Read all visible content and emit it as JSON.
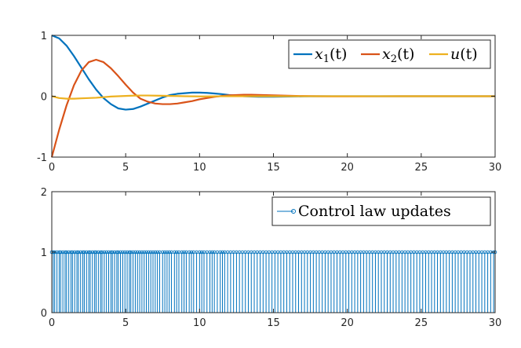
{
  "chart_data": [
    {
      "type": "line",
      "title": "",
      "xlabel": "",
      "ylabel": "",
      "xlim": [
        0,
        30
      ],
      "ylim": [
        -1,
        1
      ],
      "xticks": [
        "0",
        "5",
        "10",
        "15",
        "20",
        "25",
        "30"
      ],
      "yticks": [
        "-1",
        "0",
        "1"
      ],
      "legend_position": "top-right",
      "series": [
        {
          "name": "x1(t)",
          "legend_base": "x",
          "legend_sub": "1",
          "legend_arg": "(t)",
          "color": "#0072BD",
          "x": [
            0,
            0.5,
            1,
            1.5,
            2,
            2.5,
            3,
            3.5,
            4,
            4.5,
            5,
            5.5,
            6,
            6.5,
            7,
            7.5,
            8,
            8.5,
            9,
            9.5,
            10,
            10.5,
            11,
            11.5,
            12,
            12.5,
            13,
            13.5,
            14,
            15,
            16,
            17,
            18,
            19,
            20,
            22,
            24,
            26,
            28,
            30
          ],
          "y": [
            1,
            0.95,
            0.83,
            0.66,
            0.47,
            0.28,
            0.11,
            -0.03,
            -0.13,
            -0.2,
            -0.22,
            -0.21,
            -0.17,
            -0.12,
            -0.07,
            -0.02,
            0.02,
            0.04,
            0.05,
            0.06,
            0.06,
            0.055,
            0.045,
            0.035,
            0.02,
            0.01,
            0.0,
            -0.005,
            -0.008,
            -0.008,
            -0.005,
            -0.002,
            0,
            0.001,
            0.001,
            0,
            0,
            0,
            0,
            0
          ]
        },
        {
          "name": "x2(t)",
          "legend_base": "x",
          "legend_sub": "2",
          "legend_arg": "(t)",
          "color": "#D95319",
          "x": [
            0,
            0.5,
            1,
            1.5,
            2,
            2.5,
            3,
            3.5,
            4,
            4.5,
            5,
            5.5,
            6,
            6.5,
            7,
            7.5,
            8,
            8.5,
            9,
            9.5,
            10,
            10.5,
            11,
            11.5,
            12,
            12.5,
            13,
            13.5,
            14,
            15,
            16,
            17,
            18,
            19,
            20,
            22,
            24,
            26,
            28,
            30
          ],
          "y": [
            -1,
            -0.55,
            -0.15,
            0.18,
            0.42,
            0.56,
            0.6,
            0.56,
            0.46,
            0.33,
            0.19,
            0.06,
            -0.04,
            -0.09,
            -0.12,
            -0.13,
            -0.13,
            -0.12,
            -0.1,
            -0.08,
            -0.05,
            -0.03,
            -0.01,
            0.005,
            0.015,
            0.02,
            0.025,
            0.025,
            0.022,
            0.015,
            0.008,
            0.003,
            0,
            -0.002,
            -0.002,
            -0.001,
            0,
            0,
            0,
            0
          ]
        },
        {
          "name": "u(t)",
          "legend_base": "u",
          "legend_sub": "",
          "legend_arg": "(t)",
          "color": "#EDB120",
          "x": [
            0,
            0.5,
            1,
            1.5,
            2,
            2.5,
            3,
            3.5,
            4,
            4.5,
            5,
            5.5,
            6,
            6.5,
            7,
            7.5,
            8,
            8.5,
            9,
            9.5,
            10,
            10.5,
            11,
            11.5,
            12,
            12.5,
            13,
            13.5,
            14,
            15,
            16,
            17,
            18,
            19,
            20,
            22,
            24,
            26,
            28,
            30
          ],
          "y": [
            0,
            -0.03,
            -0.04,
            -0.04,
            -0.035,
            -0.03,
            -0.025,
            -0.015,
            -0.005,
            0.0,
            0.005,
            0.01,
            0.012,
            0.012,
            0.01,
            0.008,
            0.005,
            0.003,
            0.0,
            -0.002,
            -0.003,
            -0.003,
            -0.002,
            -0.001,
            0,
            0,
            0,
            0,
            0,
            0,
            0,
            0,
            0,
            0,
            0,
            0,
            0,
            0,
            0,
            0
          ]
        }
      ]
    },
    {
      "type": "stem",
      "title": "",
      "xlabel": "",
      "ylabel": "",
      "xlim": [
        0,
        30
      ],
      "ylim": [
        0,
        2
      ],
      "xticks": [
        "0",
        "5",
        "10",
        "15",
        "20",
        "25",
        "30"
      ],
      "yticks": [
        "0",
        "1",
        "2"
      ],
      "legend_position": "top-right",
      "series": [
        {
          "name": "Control law updates",
          "color": "#0072BD",
          "value": 1,
          "x": [
            0.0,
            0.1,
            0.2,
            0.35,
            0.5,
            0.6,
            0.75,
            0.9,
            1.0,
            1.15,
            1.3,
            1.4,
            1.55,
            1.7,
            1.8,
            1.95,
            2.1,
            2.2,
            2.35,
            2.5,
            2.6,
            2.75,
            2.9,
            3.0,
            3.15,
            3.3,
            3.4,
            3.55,
            3.7,
            3.85,
            4.0,
            4.1,
            4.25,
            4.4,
            4.5,
            4.65,
            4.8,
            4.95,
            5.1,
            5.25,
            5.35,
            5.5,
            5.65,
            5.8,
            5.95,
            6.1,
            6.25,
            6.4,
            6.55,
            6.7,
            6.85,
            7.0,
            7.15,
            7.3,
            7.5,
            7.65,
            7.8,
            7.95,
            8.1,
            8.3,
            8.45,
            8.6,
            8.8,
            8.95,
            9.1,
            9.3,
            9.45,
            9.6,
            9.8,
            10.0,
            10.15,
            10.3,
            10.5,
            10.7,
            10.85,
            11.0,
            11.2,
            11.4,
            11.55,
            11.7,
            11.9,
            12.1,
            12.3,
            12.5,
            12.7,
            12.9,
            13.1,
            13.3,
            13.5,
            13.7,
            13.9,
            14.1,
            14.3,
            14.5,
            14.7,
            14.9,
            15.1,
            15.3,
            15.5,
            15.7,
            15.9,
            16.1,
            16.3,
            16.5,
            16.7,
            16.9,
            17.1,
            17.3,
            17.5,
            17.7,
            17.9,
            18.1,
            18.3,
            18.5,
            18.7,
            18.9,
            19.1,
            19.3,
            19.5,
            19.7,
            19.9,
            20.1,
            20.3,
            20.5,
            20.7,
            20.9,
            21.1,
            21.3,
            21.5,
            21.7,
            21.9,
            22.1,
            22.3,
            22.5,
            22.7,
            22.9,
            23.1,
            23.3,
            23.5,
            23.7,
            23.9,
            24.1,
            24.3,
            24.5,
            24.7,
            24.9,
            25.1,
            25.3,
            25.5,
            25.7,
            25.9,
            26.1,
            26.3,
            26.5,
            26.7,
            26.9,
            27.1,
            27.3,
            27.5,
            27.7,
            27.9,
            28.1,
            28.3,
            28.5,
            28.7,
            28.9,
            29.1,
            29.3,
            29.5,
            29.7,
            29.9,
            30.0
          ]
        }
      ]
    }
  ]
}
